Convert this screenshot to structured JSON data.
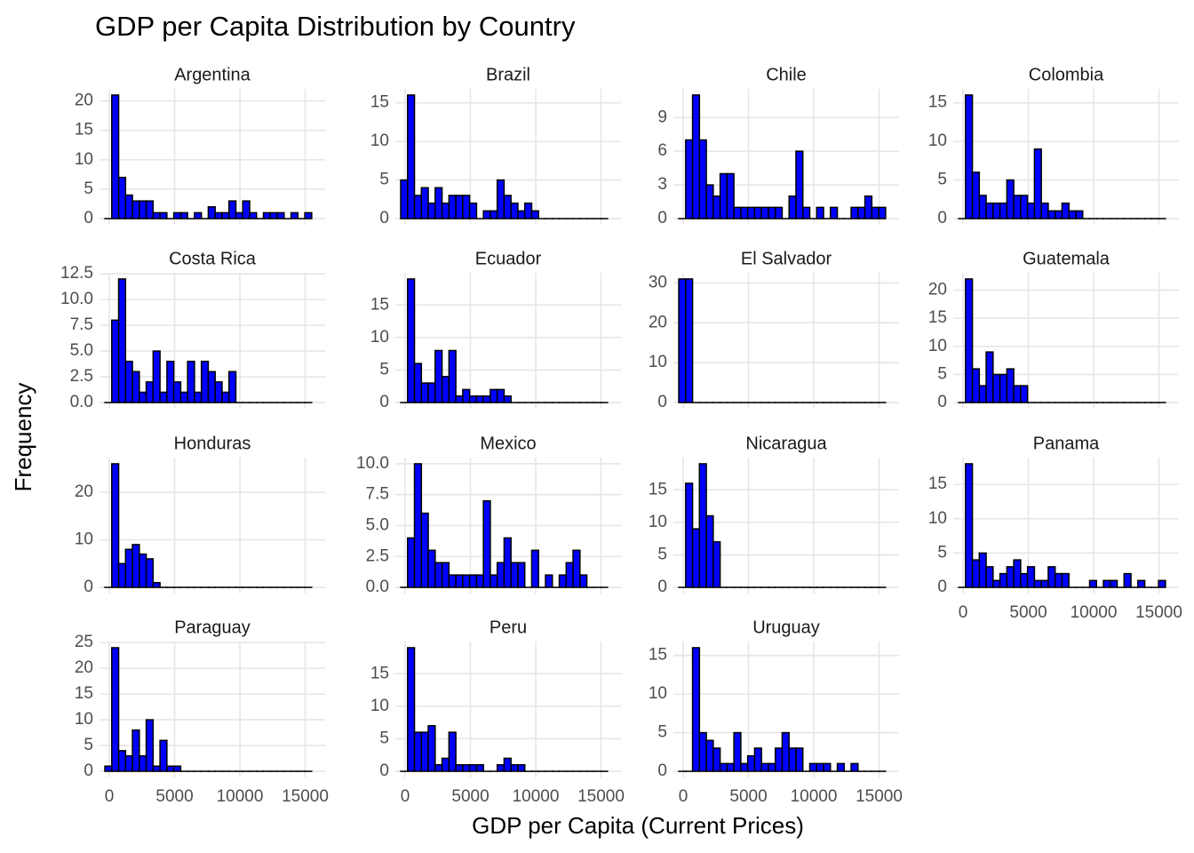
{
  "chart_data": {
    "type": "faceted-histogram",
    "title": "GDP per Capita Distribution by Country",
    "x_label": "GDP per Capita (Current Prices)",
    "y_label": "Frequency",
    "color": "#0000ff",
    "edge_color": "#000000",
    "grid": true,
    "bins": [
      -340,
      188,
      716,
      1244,
      1772,
      2300,
      2828,
      3356,
      3884,
      4412,
      4940,
      5468,
      5996,
      6524,
      7052,
      7580,
      8108,
      8636,
      9164,
      9692,
      10220,
      10748,
      11276,
      11804,
      12332,
      12860,
      13388,
      13916,
      14444,
      14972,
      15500
    ],
    "xlim": [
      -750,
      16530
    ],
    "xticks": [
      0,
      5000,
      10000,
      15000
    ],
    "panels": [
      {
        "title": "Argentina",
        "ylim": [
          -1.05,
          22.05
        ],
        "yticks": [
          0,
          5,
          10,
          15,
          20
        ],
        "values": [
          0,
          21,
          7,
          4,
          3,
          3,
          3,
          1,
          1,
          0,
          1,
          1,
          0,
          1,
          0,
          2,
          1,
          1,
          3,
          1,
          3,
          1,
          0,
          1,
          1,
          1,
          0,
          1,
          0,
          1
        ]
      },
      {
        "title": "Brazil",
        "ylim": [
          -0.8,
          16.8
        ],
        "yticks": [
          0,
          5,
          10,
          15
        ],
        "values": [
          5,
          16,
          3,
          4,
          2,
          4,
          2,
          3,
          3,
          3,
          2,
          0,
          1,
          1,
          5,
          3,
          2,
          1,
          2,
          1,
          0,
          0,
          0,
          0,
          0,
          0,
          0,
          0,
          0,
          0
        ]
      },
      {
        "title": "Chile",
        "ylim": [
          -0.55,
          11.55
        ],
        "yticks": [
          0,
          3,
          6,
          9
        ],
        "values": [
          0,
          7,
          11,
          7,
          3,
          2,
          4,
          4,
          1,
          1,
          1,
          1,
          1,
          1,
          1,
          0,
          2,
          6,
          1,
          0,
          1,
          0,
          1,
          0,
          0,
          1,
          1,
          2,
          1,
          1
        ]
      },
      {
        "title": "Colombia",
        "ylim": [
          -0.8,
          16.8
        ],
        "yticks": [
          0,
          5,
          10,
          15
        ],
        "values": [
          0,
          16,
          6,
          3,
          2,
          2,
          2,
          5,
          3,
          3,
          2,
          9,
          2,
          1,
          1,
          2,
          1,
          1,
          0,
          0,
          0,
          0,
          0,
          0,
          0,
          0,
          0,
          0,
          0,
          0
        ]
      },
      {
        "title": "Costa Rica",
        "ylim": [
          -0.6,
          12.6
        ],
        "yticks": [
          {
            "value": 0,
            "label": "0.0"
          },
          2.5,
          {
            "value": 5,
            "label": "5.0"
          },
          7.5,
          {
            "value": 10,
            "label": "10.0"
          },
          12.5
        ],
        "values": [
          0,
          8,
          12,
          4,
          3,
          1,
          2,
          5,
          1,
          4,
          2,
          1,
          4,
          1,
          4,
          3,
          2,
          1,
          3,
          0,
          0,
          0,
          0,
          0,
          0,
          0,
          0,
          0,
          0,
          0
        ]
      },
      {
        "title": "Ecuador",
        "ylim": [
          -0.95,
          19.95
        ],
        "yticks": [
          0,
          5,
          10,
          15
        ],
        "values": [
          0,
          19,
          6,
          3,
          3,
          8,
          4,
          8,
          1,
          2,
          1,
          1,
          1,
          2,
          2,
          1,
          0,
          0,
          0,
          0,
          0,
          0,
          0,
          0,
          0,
          0,
          0,
          0,
          0,
          0
        ]
      },
      {
        "title": "El Salvador",
        "ylim": [
          -1.55,
          32.55
        ],
        "yticks": [
          0,
          10,
          20,
          30
        ],
        "values": [
          31,
          31,
          0,
          0,
          0,
          0,
          0,
          0,
          0,
          0,
          0,
          0,
          0,
          0,
          0,
          0,
          0,
          0,
          0,
          0,
          0,
          0,
          0,
          0,
          0,
          0,
          0,
          0,
          0,
          0
        ]
      },
      {
        "title": "Guatemala",
        "ylim": [
          -1.1,
          23.1
        ],
        "yticks": [
          0,
          5,
          10,
          15,
          20
        ],
        "values": [
          0,
          22,
          6,
          3,
          9,
          5,
          5,
          6,
          3,
          3,
          0,
          0,
          0,
          0,
          0,
          0,
          0,
          0,
          0,
          0,
          0,
          0,
          0,
          0,
          0,
          0,
          0,
          0,
          0,
          0
        ]
      },
      {
        "title": "Honduras",
        "ylim": [
          -1.3,
          27.3
        ],
        "yticks": [
          0,
          10,
          20
        ],
        "values": [
          0,
          26,
          5,
          8,
          9,
          7,
          6,
          1,
          0,
          0,
          0,
          0,
          0,
          0,
          0,
          0,
          0,
          0,
          0,
          0,
          0,
          0,
          0,
          0,
          0,
          0,
          0,
          0,
          0,
          0
        ]
      },
      {
        "title": "Mexico",
        "ylim": [
          -0.5,
          10.5
        ],
        "yticks": [
          {
            "value": 0,
            "label": "0.0"
          },
          2.5,
          {
            "value": 5,
            "label": "5.0"
          },
          7.5,
          {
            "value": 10,
            "label": "10.0"
          }
        ],
        "values": [
          0,
          4,
          10,
          6,
          3,
          2,
          2,
          1,
          1,
          1,
          1,
          1,
          7,
          1,
          2,
          4,
          2,
          2,
          0,
          3,
          0,
          1,
          0,
          1,
          2,
          3,
          1,
          0,
          0,
          0
        ]
      },
      {
        "title": "Nicaragua",
        "ylim": [
          -0.95,
          19.95
        ],
        "yticks": [
          0,
          5,
          10,
          15
        ],
        "values": [
          0,
          16,
          9,
          19,
          11,
          7,
          0,
          0,
          0,
          0,
          0,
          0,
          0,
          0,
          0,
          0,
          0,
          0,
          0,
          0,
          0,
          0,
          0,
          0,
          0,
          0,
          0,
          0,
          0,
          0
        ]
      },
      {
        "title": "Panama",
        "ylim": [
          -0.9,
          18.9
        ],
        "yticks": [
          0,
          5,
          10,
          15
        ],
        "values": [
          0,
          18,
          4,
          5,
          3,
          1,
          2,
          3,
          4,
          2,
          3,
          1,
          1,
          3,
          2,
          2,
          0,
          0,
          0,
          1,
          0,
          1,
          1,
          0,
          2,
          0,
          1,
          0,
          0,
          1
        ]
      },
      {
        "title": "Paraguay",
        "ylim": [
          -1.2,
          25.2
        ],
        "yticks": [
          0,
          5,
          10,
          15,
          20,
          25
        ],
        "values": [
          1,
          24,
          4,
          3,
          8,
          3,
          10,
          1,
          6,
          1,
          1,
          0,
          0,
          0,
          0,
          0,
          0,
          0,
          0,
          0,
          0,
          0,
          0,
          0,
          0,
          0,
          0,
          0,
          0,
          0
        ]
      },
      {
        "title": "Peru",
        "ylim": [
          -0.95,
          19.95
        ],
        "yticks": [
          0,
          5,
          10,
          15
        ],
        "values": [
          0,
          19,
          6,
          6,
          7,
          1,
          2,
          6,
          1,
          1,
          1,
          1,
          0,
          0,
          1,
          2,
          1,
          1,
          0,
          0,
          0,
          0,
          0,
          0,
          0,
          0,
          0,
          0,
          0,
          0
        ]
      },
      {
        "title": "Uruguay",
        "ylim": [
          -0.8,
          16.8
        ],
        "yticks": [
          0,
          5,
          10,
          15
        ],
        "values": [
          0,
          0,
          16,
          5,
          4,
          3,
          1,
          1,
          5,
          1,
          2,
          3,
          1,
          1,
          3,
          5,
          3,
          3,
          0,
          1,
          1,
          1,
          0,
          1,
          0,
          1,
          0,
          0,
          0,
          0
        ]
      }
    ]
  }
}
